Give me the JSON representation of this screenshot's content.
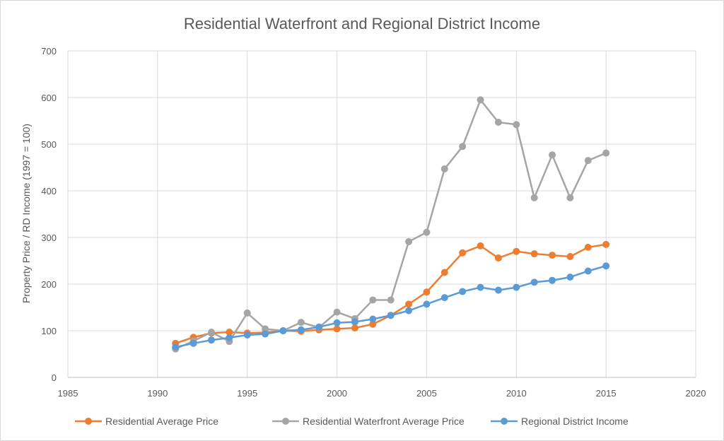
{
  "chart_data": {
    "type": "line",
    "title": "Residential Waterfront and Regional District Income",
    "xlabel": "",
    "ylabel": "Property Price / RD Income (1997 = 100)",
    "xlim": [
      1985,
      2020
    ],
    "ylim": [
      0,
      700
    ],
    "x_ticks": [
      1985,
      1990,
      1995,
      2000,
      2005,
      2010,
      2015,
      2020
    ],
    "y_ticks": [
      0,
      100,
      200,
      300,
      400,
      500,
      600,
      700
    ],
    "grid": true,
    "legend_position": "bottom",
    "series": [
      {
        "name": "Residential Average Price",
        "color": "#ed7d31",
        "x": [
          1991,
          1992,
          1993,
          1994,
          1995,
          1996,
          1997,
          1998,
          1999,
          2000,
          2001,
          2002,
          2003,
          2004,
          2005,
          2006,
          2007,
          2008,
          2009,
          2010,
          2011,
          2012,
          2013,
          2014,
          2015
        ],
        "y": [
          73,
          86,
          95,
          97,
          95,
          96,
          100,
          99,
          102,
          104,
          106,
          114,
          133,
          157,
          183,
          225,
          267,
          282,
          256,
          270,
          265,
          262,
          259,
          279,
          285
        ]
      },
      {
        "name": "Residential Waterfront Average Price",
        "color": "#a5a5a5",
        "x": [
          1991,
          1992,
          1993,
          1994,
          1995,
          1996,
          1997,
          1998,
          1999,
          2000,
          2001,
          2002,
          2003,
          2004,
          2005,
          2006,
          2007,
          2008,
          2009,
          2010,
          2011,
          2012,
          2013,
          2014,
          2015
        ],
        "y": [
          61,
          78,
          97,
          77,
          138,
          104,
          100,
          118,
          107,
          140,
          126,
          166,
          166,
          291,
          311,
          447,
          495,
          595,
          547,
          542,
          385,
          477,
          385,
          465,
          481
        ]
      },
      {
        "name": "Regional District Income",
        "color": "#5b9bd5",
        "x": [
          1991,
          1992,
          1993,
          1994,
          1995,
          1996,
          1997,
          1998,
          1999,
          2000,
          2001,
          2002,
          2003,
          2004,
          2005,
          2006,
          2007,
          2008,
          2009,
          2010,
          2011,
          2012,
          2013,
          2014,
          2015
        ],
        "y": [
          65,
          73,
          80,
          85,
          91,
          93,
          100,
          102,
          108,
          117,
          119,
          125,
          133,
          143,
          157,
          171,
          184,
          193,
          187,
          193,
          204,
          208,
          215,
          228,
          239
        ]
      }
    ]
  }
}
